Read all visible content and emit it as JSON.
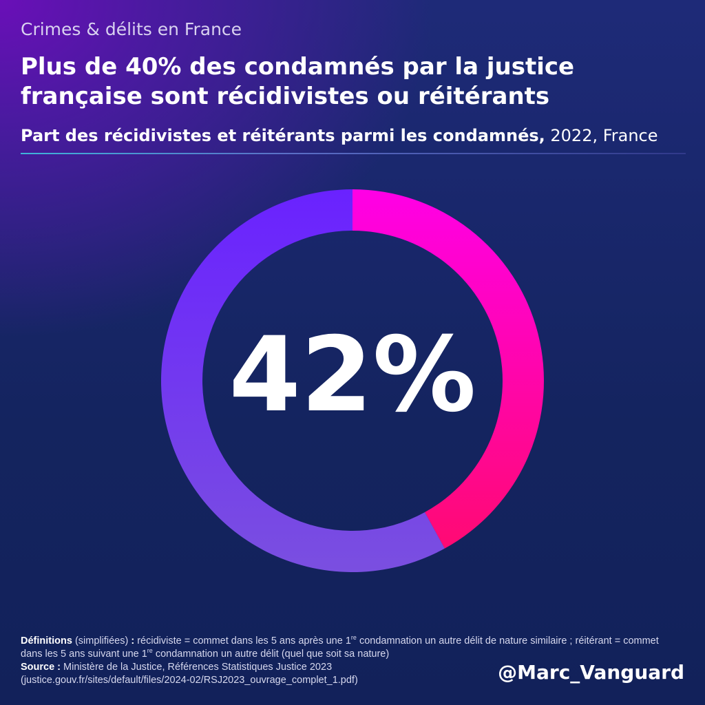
{
  "header": {
    "supertitle": "Crimes & délits en France",
    "title": "Plus de 40% des condamnés par la justice française sont récidivistes ou réitérants",
    "subtitle_bold": "Part des récidivistes et réitérants parmi les condamnés,",
    "subtitle_rest": " 2022, France"
  },
  "chart_data": {
    "type": "pie",
    "donut": true,
    "title": "Part des récidivistes et réitérants parmi les condamnés, 2022, France",
    "center_label": "42%",
    "slices": [
      {
        "value": 42,
        "color_start": "#ff00e6",
        "color_end": "#ff0a73"
      },
      {
        "value": 58,
        "color_start": "#7a4fe0",
        "color_end": "#6a22ff"
      }
    ]
  },
  "footer": {
    "definitions_label": "Définitions",
    "definitions_qualifier": " (simplifiées) ",
    "definitions_colon": ":",
    "definitions_text_1": " récidiviste = commet dans les 5 ans après une 1",
    "sup_1": "re",
    "definitions_text_2": " condamnation un autre délit de nature similaire ; réitérant = commet dans les 5 ans suivant une 1",
    "sup_2": "re",
    "definitions_text_3": " condamnation un autre délit (quel que soit sa nature)",
    "source_label": "Source :",
    "source_text": " Ministère de la Justice, Références Statistiques Justice 2023",
    "source_url": "(justice.gouv.fr/sites/default/files/2024-02/RSJ2023_ouvrage_complet_1.pdf)"
  },
  "branding": {
    "handle": "@Marc_Vanguard"
  }
}
